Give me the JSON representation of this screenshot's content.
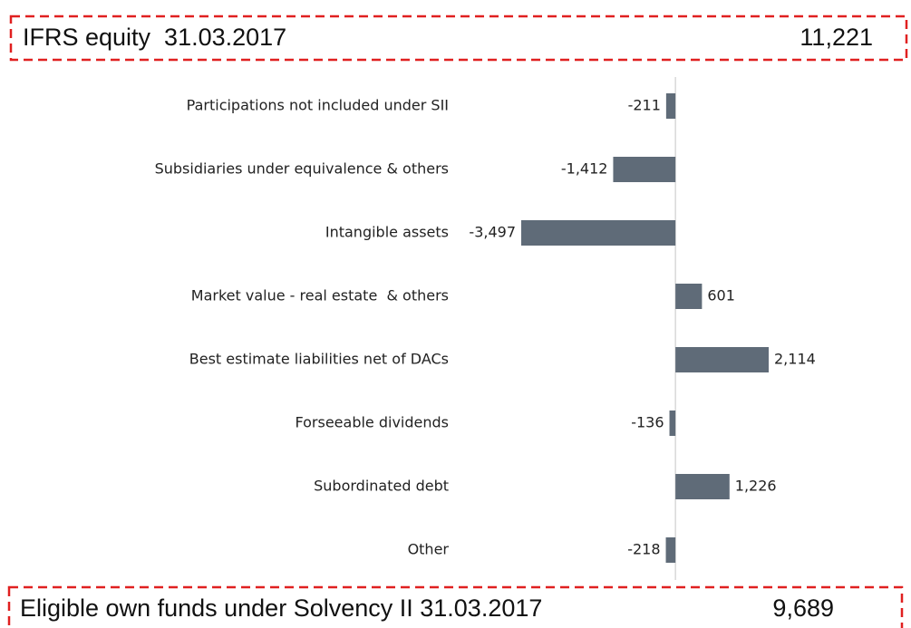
{
  "chart_data": {
    "type": "bar",
    "orientation": "horizontal",
    "header": {
      "label": "IFRS equity  31.03.2017",
      "amount": "11,221"
    },
    "footer": {
      "label": "Eligible own funds under Solvency II 31.03.2017",
      "amount": "9,689"
    },
    "categories": [
      "Participations not included under SII",
      "Subsidiaries under equivalence & others",
      "Intangible assets",
      "Market value - real estate  & others",
      "Best estimate liabilities net of DACs",
      "Forseeable dividends",
      "Subordinated debt",
      "Other"
    ],
    "values": [
      -211,
      -1412,
      -3497,
      601,
      2114,
      -136,
      1226,
      -218
    ],
    "value_labels": [
      "-211",
      "-1,412",
      "-3,497",
      "601",
      "2,114",
      "-136",
      "1,226",
      "-218"
    ],
    "color": "#5f6b78"
  }
}
